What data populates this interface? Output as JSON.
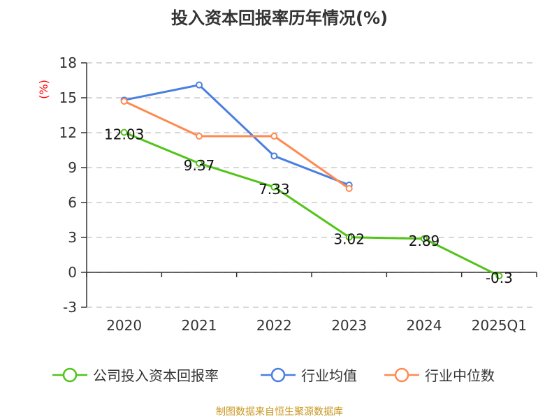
{
  "chart_data": {
    "type": "line",
    "title": "投入资本回报率历年情况(%)",
    "ylabel": "(%)",
    "categories": [
      "2020",
      "2021",
      "2022",
      "2023",
      "2024",
      "2025Q1"
    ],
    "ylim": [
      -3,
      18
    ],
    "yticks": [
      -3,
      0,
      3,
      6,
      9,
      12,
      15,
      18
    ],
    "grid": true,
    "legend_position": "bottom",
    "series": [
      {
        "name": "公司投入资本回报率",
        "color": "#52c41a",
        "values": [
          12.03,
          9.37,
          7.33,
          3.02,
          2.89,
          -0.3
        ],
        "labels": [
          "12.03",
          "9.37",
          "7.33",
          "3.02",
          "2.89",
          "-0.3"
        ]
      },
      {
        "name": "行业均值",
        "color": "#4a7fe0",
        "values": [
          14.8,
          16.1,
          10.0,
          7.5,
          null,
          null
        ]
      },
      {
        "name": "行业中位数",
        "color": "#ff8a50",
        "values": [
          14.7,
          11.7,
          11.7,
          7.2,
          null,
          null
        ]
      }
    ]
  },
  "source": "制图数据来自恒生聚源数据库"
}
